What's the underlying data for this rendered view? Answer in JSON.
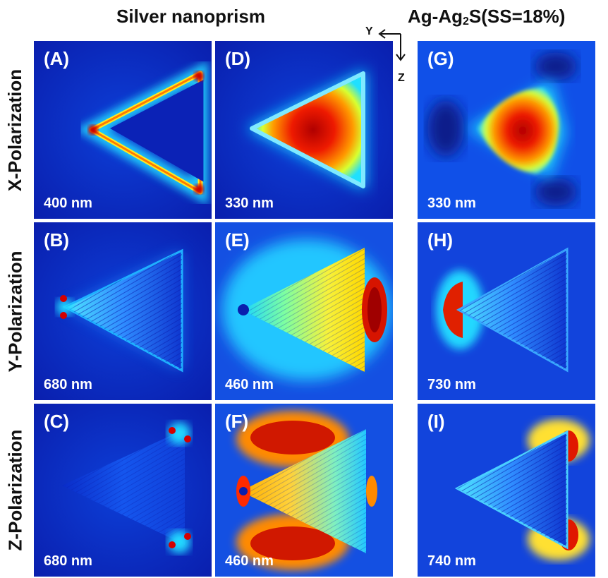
{
  "titles": {
    "left": "Silver nanoprism",
    "right_prefix": "Ag-Ag",
    "right_sub": "2",
    "right_suffix": "S(SS=18%)"
  },
  "rows": [
    "X-Polarization",
    "Y-Polarization",
    "Z-Polarization"
  ],
  "axes": {
    "y": "Y",
    "z": "Z"
  },
  "panels": [
    {
      "tag": "(A)",
      "wavelength": "400 nm"
    },
    {
      "tag": "(D)",
      "wavelength": "330 nm"
    },
    {
      "tag": "(G)",
      "wavelength": "330 nm"
    },
    {
      "tag": "(B)",
      "wavelength": "680 nm"
    },
    {
      "tag": "(E)",
      "wavelength": "460 nm"
    },
    {
      "tag": "(H)",
      "wavelength": "730 nm"
    },
    {
      "tag": "(C)",
      "wavelength": "680 nm"
    },
    {
      "tag": "(F)",
      "wavelength": "460 nm"
    },
    {
      "tag": "(I)",
      "wavelength": "740 nm"
    }
  ],
  "colormap": [
    "#00008f",
    "#0033ff",
    "#00ccff",
    "#7fff7f",
    "#ffff00",
    "#ff6600",
    "#c00000"
  ]
}
